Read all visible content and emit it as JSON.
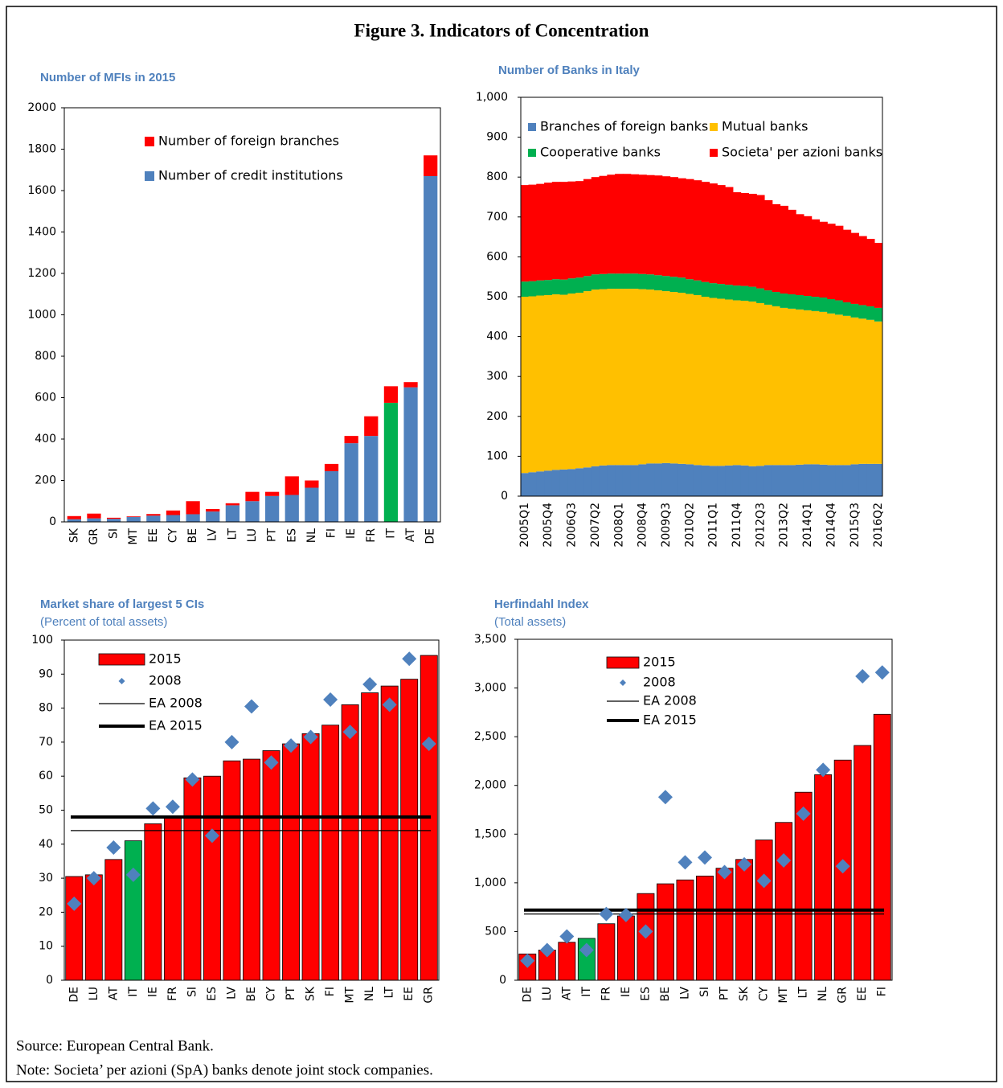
{
  "title": "Figure 3. Indicators of Concentration",
  "source": "Source: European Central Bank.",
  "note": "Note: Societa’ per azioni (SpA) banks denote joint stock companies.",
  "chart_data": [
    {
      "type": "stacked_bar",
      "title": "Number of MFIs in 2015",
      "legend": "upper left",
      "categories": [
        "SK",
        "GR",
        "SI",
        "MT",
        "EE",
        "CY",
        "BE",
        "LV",
        "LT",
        "LU",
        "PT",
        "ES",
        "NL",
        "FI",
        "IE",
        "FR",
        "IT",
        "AT",
        "DE"
      ],
      "series": [
        {
          "name": "Number of credit institutions",
          "color": "#4f81bd",
          "highlight": {
            "category": "IT",
            "color": "#00b050"
          },
          "values": [
            13,
            17,
            15,
            24,
            30,
            33,
            37,
            50,
            80,
            100,
            125,
            130,
            165,
            245,
            380,
            415,
            575,
            650,
            1670
          ]
        },
        {
          "name": "Number of foreign branches",
          "color": "#ff0000",
          "values": [
            15,
            23,
            5,
            3,
            8,
            22,
            63,
            12,
            10,
            45,
            20,
            90,
            35,
            35,
            35,
            95,
            80,
            25,
            100
          ]
        }
      ],
      "ylim": [
        0,
        2000
      ],
      "yticks": [
        0,
        200,
        400,
        600,
        800,
        1000,
        1200,
        1400,
        1600,
        1800,
        2000
      ]
    },
    {
      "type": "stacked_area",
      "title": "Number of Banks in Italy",
      "legend": "top",
      "categories": [
        "2005Q1",
        null,
        null,
        "2005Q4",
        null,
        null,
        "2006Q3",
        null,
        null,
        "2007Q2",
        null,
        null,
        "2008Q1",
        null,
        null,
        "2008Q4",
        null,
        null,
        "2009Q3",
        null,
        null,
        "2010Q2",
        null,
        null,
        "2011Q1",
        null,
        null,
        "2011Q4",
        null,
        null,
        "2012Q3",
        null,
        null,
        "2013Q2",
        null,
        null,
        "2014Q1",
        null,
        null,
        "2014Q4",
        null,
        null,
        "2015Q3",
        null,
        null,
        "2016Q2"
      ],
      "series": [
        {
          "name": "Branches of foreign banks",
          "color": "#4f81bd",
          "values": [
            58,
            60,
            62,
            64,
            66,
            67,
            68,
            70,
            72,
            75,
            77,
            78,
            78,
            78,
            78,
            80,
            82,
            82,
            83,
            82,
            81,
            80,
            78,
            77,
            76,
            76,
            77,
            78,
            77,
            75,
            76,
            78,
            78,
            78,
            78,
            79,
            80,
            80,
            79,
            78,
            78,
            78,
            80,
            81,
            81,
            81
          ]
        },
        {
          "name": "Mutual banks",
          "color": "#ffc000",
          "values": [
            442,
            441,
            441,
            440,
            440,
            438,
            440,
            440,
            442,
            443,
            442,
            442,
            442,
            442,
            442,
            439,
            436,
            434,
            431,
            430,
            429,
            427,
            426,
            423,
            421,
            419,
            416,
            413,
            413,
            413,
            408,
            402,
            398,
            394,
            392,
            389,
            386,
            384,
            383,
            380,
            377,
            374,
            368,
            364,
            361,
            357
          ]
        },
        {
          "name": "Cooperative banks",
          "color": "#00b050",
          "values": [
            38,
            38,
            38,
            38,
            38,
            38,
            38,
            38,
            38,
            38,
            38,
            38,
            38,
            38,
            38,
            38,
            38,
            38,
            38,
            38,
            38,
            37,
            37,
            37,
            37,
            37,
            37,
            37,
            37,
            37,
            37,
            36,
            36,
            36,
            36,
            36,
            36,
            36,
            36,
            36,
            36,
            34,
            34,
            34,
            34,
            34
          ]
        },
        {
          "name": "Societa' per azioni banks",
          "color": "#ff0000",
          "values": [
            242,
            242,
            242,
            244,
            244,
            245,
            243,
            242,
            243,
            244,
            246,
            248,
            250,
            250,
            249,
            249,
            249,
            250,
            250,
            250,
            249,
            251,
            251,
            251,
            250,
            248,
            245,
            234,
            233,
            233,
            234,
            226,
            220,
            220,
            212,
            203,
            200,
            194,
            190,
            189,
            187,
            182,
            178,
            173,
            169,
            163
          ]
        }
      ],
      "ylim": [
        0,
        1000
      ],
      "yticks": [
        0,
        100,
        200,
        300,
        400,
        500,
        600,
        700,
        800,
        900,
        {
          "value": 1000,
          "label": "1,000"
        }
      ]
    },
    {
      "type": "bar",
      "title": "Market share of largest 5 CIs",
      "subtitle": "(Percent of total assets)",
      "legend": "upper left",
      "categories": [
        "DE",
        "LU",
        "AT",
        "IT",
        "IE",
        "FR",
        "SI",
        "ES",
        "LV",
        "BE",
        "CY",
        "PT",
        "SK",
        "FI",
        "MT",
        "NL",
        "LT",
        "EE",
        "GR"
      ],
      "series": [
        {
          "name": "2015",
          "type": "bar",
          "color": "#ff0000",
          "highlight": {
            "category": "IT",
            "color": "#00b050"
          },
          "values": [
            30.5,
            31,
            35.5,
            41,
            46,
            48,
            59.5,
            60,
            64.5,
            65,
            67.5,
            69.5,
            72.5,
            75,
            81,
            84.5,
            86.5,
            88.5,
            95.5
          ]
        },
        {
          "name": "2008",
          "type": "scatter",
          "color": "#4f81bd",
          "values": [
            22.5,
            30,
            39,
            31,
            50.5,
            51,
            59,
            42.5,
            70,
            80.5,
            64,
            69,
            71.5,
            82.5,
            73,
            87,
            81,
            94.5,
            69.5
          ]
        }
      ],
      "reference_lines": [
        {
          "name": "EA 2008",
          "value": 44,
          "weight": "thin",
          "color": "#000000"
        },
        {
          "name": "EA 2015",
          "value": 48,
          "weight": "thick",
          "color": "#000000"
        }
      ],
      "ylim": [
        0,
        100
      ],
      "yticks": [
        0,
        10,
        20,
        30,
        40,
        50,
        60,
        70,
        80,
        90,
        100
      ]
    },
    {
      "type": "bar",
      "title": "Herfindahl Index",
      "subtitle": "(Total assets)",
      "legend": "upper left",
      "categories": [
        "DE",
        "LU",
        "AT",
        "IT",
        "FR",
        "IE",
        "ES",
        "BE",
        "LV",
        "SI",
        "PT",
        "SK",
        "CY",
        "MT",
        "LT",
        "NL",
        "GR",
        "EE",
        "FI"
      ],
      "series": [
        {
          "name": "2015",
          "type": "bar",
          "color": "#ff0000",
          "highlight": {
            "category": "IT",
            "color": "#00b050"
          },
          "values": [
            270,
            310,
            390,
            430,
            580,
            660,
            890,
            990,
            1030,
            1070,
            1150,
            1240,
            1440,
            1620,
            1930,
            2110,
            2260,
            2410,
            2730
          ]
        },
        {
          "name": "2008",
          "type": "scatter",
          "color": "#4f81bd",
          "values": [
            200,
            310,
            450,
            310,
            680,
            670,
            500,
            1880,
            1210,
            1260,
            1110,
            1190,
            1020,
            1230,
            1710,
            2160,
            1170,
            3120,
            3160
          ]
        }
      ],
      "reference_lines": [
        {
          "name": "EA 2008",
          "value": 680,
          "weight": "thin",
          "color": "#000000"
        },
        {
          "name": "EA 2015",
          "value": 720,
          "weight": "thick",
          "color": "#000000"
        }
      ],
      "ylim": [
        0,
        3500
      ],
      "yticks": [
        0,
        500,
        {
          "value": 1000,
          "label": "1,000"
        },
        {
          "value": 1500,
          "label": "1,500"
        },
        {
          "value": 2000,
          "label": "2,000"
        },
        {
          "value": 2500,
          "label": "2,500"
        },
        {
          "value": 3000,
          "label": "3,000"
        },
        {
          "value": 3500,
          "label": "3,500"
        }
      ]
    }
  ]
}
